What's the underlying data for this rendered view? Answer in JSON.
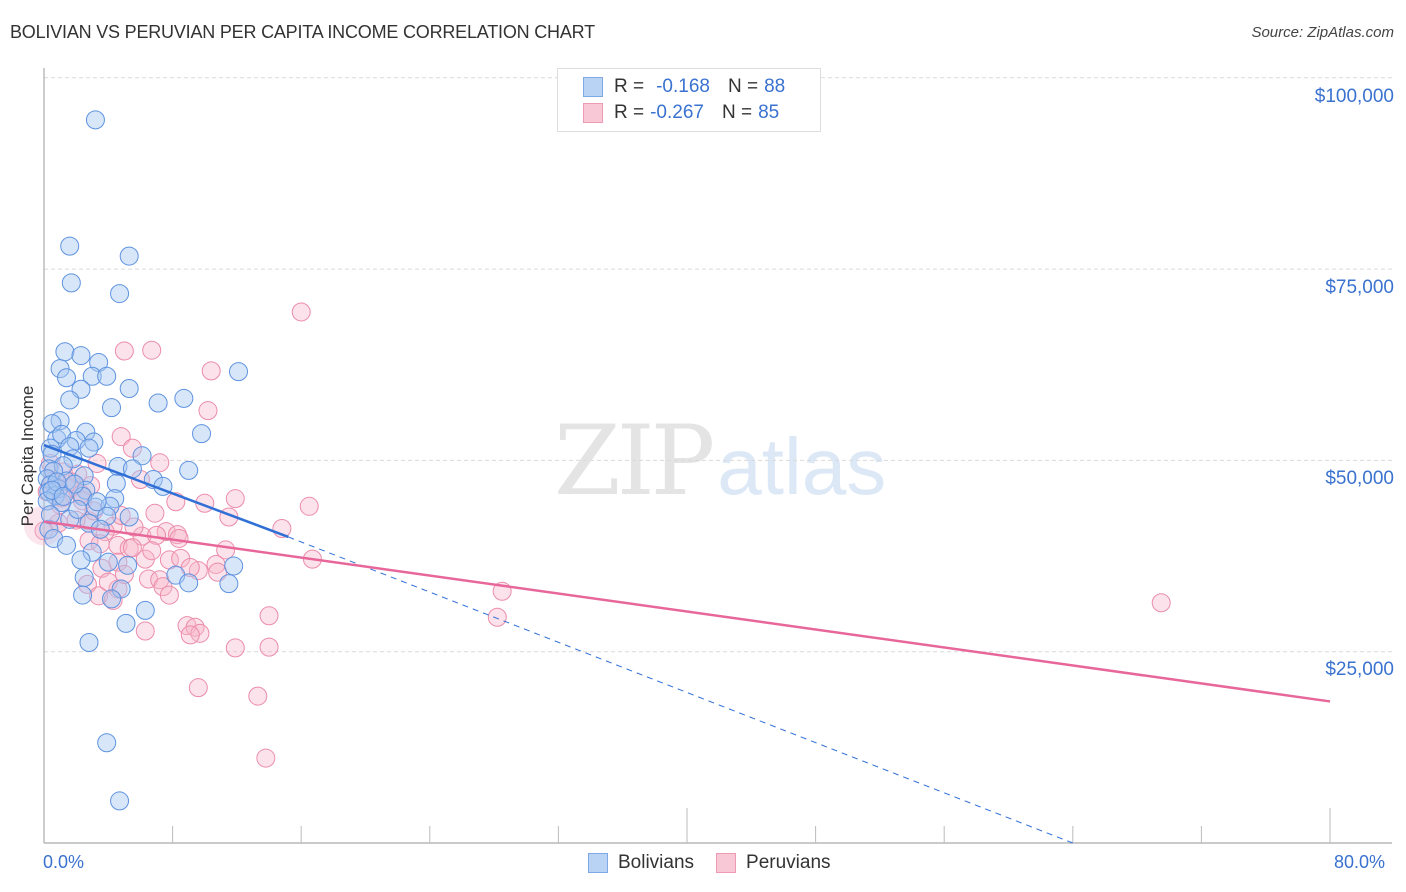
{
  "header": {
    "title": "BOLIVIAN VS PERUVIAN PER CAPITA INCOME CORRELATION CHART",
    "source": "Source: ZipAtlas.com"
  },
  "watermark": {
    "zip": "ZIP",
    "atlas": "atlas"
  },
  "legend": {
    "rows": [
      {
        "r_label": "R =",
        "r_value": "-0.168",
        "n_label": "N =",
        "n_value": "88",
        "color": "#b9d3f5",
        "border": "#7fa8e6"
      },
      {
        "r_label": "R =",
        "r_value": "-0.267",
        "n_label": "N =",
        "n_value": "85",
        "color": "#f9c8d6",
        "border": "#ee9ab4"
      }
    ]
  },
  "bottom_legend": [
    {
      "label": "Bolivians",
      "color": "#b9d3f5",
      "border": "#7fa8e6"
    },
    {
      "label": "Peruvians",
      "color": "#f9c8d6",
      "border": "#ee9ab4"
    }
  ],
  "axes": {
    "ylabel": "Per Capita Income",
    "yticks": [
      "$100,000",
      "$75,000",
      "$50,000",
      "$25,000"
    ],
    "xticks": {
      "min_label": "0.0%",
      "max_label": "80.0%"
    }
  },
  "colors": {
    "blue_line": "#2f6fd6",
    "pink_line": "#e8679a",
    "blue_fill": "rgba(167,199,242,0.45)",
    "blue_stroke": "#5f93e0",
    "pink_fill": "rgba(247,183,203,0.4)",
    "pink_stroke": "#ec8cab",
    "tick_label": "#3a72d0"
  },
  "chart_data": {
    "type": "scatter",
    "title": "BOLIVIAN VS PERUVIAN PER CAPITA INCOME CORRELATION CHART",
    "xlabel": "",
    "ylabel": "Per Capita Income",
    "xlim": [
      0,
      80
    ],
    "ylim": [
      0,
      102000
    ],
    "x_unit": "%",
    "grid": true,
    "legend_position": "top-center and bottom-center",
    "series": [
      {
        "name": "Bolivians",
        "R": -0.168,
        "N": 88,
        "trend": {
          "x0": 0,
          "y0": 52000,
          "x1": 15.2,
          "y1": 40000,
          "dashed_extension_to": {
            "x": 64,
            "y": 0
          }
        },
        "points": [
          [
            3.2,
            94500
          ],
          [
            1.6,
            78000
          ],
          [
            5.3,
            76700
          ],
          [
            1.7,
            73200
          ],
          [
            4.7,
            71800
          ],
          [
            1.3,
            64200
          ],
          [
            2.3,
            63700
          ],
          [
            3.4,
            62800
          ],
          [
            12.1,
            61600
          ],
          [
            1.0,
            62000
          ],
          [
            3.0,
            61000
          ],
          [
            3.9,
            61000
          ],
          [
            1.4,
            60800
          ],
          [
            5.3,
            59400
          ],
          [
            2.3,
            59300
          ],
          [
            1.6,
            57900
          ],
          [
            8.7,
            58100
          ],
          [
            7.1,
            57500
          ],
          [
            4.2,
            56900
          ],
          [
            1.0,
            55200
          ],
          [
            0.5,
            54800
          ],
          [
            2.6,
            53700
          ],
          [
            9.8,
            53500
          ],
          [
            0.8,
            52800
          ],
          [
            1.1,
            53400
          ],
          [
            2.0,
            52600
          ],
          [
            3.1,
            52400
          ],
          [
            1.6,
            51800
          ],
          [
            0.4,
            51600
          ],
          [
            2.8,
            51600
          ],
          [
            0.5,
            50800
          ],
          [
            6.1,
            50600
          ],
          [
            1.8,
            50200
          ],
          [
            0.3,
            48900
          ],
          [
            1.2,
            49300
          ],
          [
            0.6,
            48600
          ],
          [
            2.5,
            48000
          ],
          [
            4.6,
            49200
          ],
          [
            5.5,
            48900
          ],
          [
            9.0,
            48700
          ],
          [
            0.2,
            47600
          ],
          [
            1.4,
            47300
          ],
          [
            0.4,
            46800
          ],
          [
            0.9,
            46300
          ],
          [
            6.8,
            47500
          ],
          [
            4.5,
            47000
          ],
          [
            2.6,
            46100
          ],
          [
            7.4,
            46600
          ],
          [
            0.3,
            45900
          ],
          [
            0.7,
            45400
          ],
          [
            2.4,
            45300
          ],
          [
            4.4,
            45000
          ],
          [
            0.2,
            44700
          ],
          [
            1.1,
            44500
          ],
          [
            3.2,
            43900
          ],
          [
            4.1,
            44000
          ],
          [
            3.9,
            42700
          ],
          [
            5.3,
            42600
          ],
          [
            1.6,
            42300
          ],
          [
            2.8,
            41800
          ],
          [
            0.3,
            41000
          ],
          [
            3.5,
            41000
          ],
          [
            0.6,
            39800
          ],
          [
            1.4,
            38900
          ],
          [
            3.0,
            38000
          ],
          [
            2.3,
            37000
          ],
          [
            4.0,
            36700
          ],
          [
            5.2,
            36300
          ],
          [
            11.8,
            36200
          ],
          [
            8.2,
            35000
          ],
          [
            2.5,
            34700
          ],
          [
            9.0,
            34000
          ],
          [
            11.5,
            33900
          ],
          [
            4.8,
            33200
          ],
          [
            2.4,
            32400
          ],
          [
            4.2,
            31900
          ],
          [
            6.3,
            30400
          ],
          [
            5.1,
            28700
          ],
          [
            2.8,
            26200
          ],
          [
            3.9,
            13100
          ],
          [
            4.7,
            5500
          ],
          [
            0.8,
            47200
          ],
          [
            1.9,
            46900
          ],
          [
            0.5,
            46100
          ],
          [
            1.2,
            45300
          ],
          [
            3.3,
            44600
          ],
          [
            2.1,
            43600
          ],
          [
            0.4,
            42900
          ]
        ]
      },
      {
        "name": "Peruvians",
        "R": -0.267,
        "N": 85,
        "trend": {
          "x0": 0,
          "y0": 42000,
          "x1": 80,
          "y1": 18500
        },
        "points": [
          [
            16.0,
            69400
          ],
          [
            5.0,
            64300
          ],
          [
            6.7,
            64400
          ],
          [
            10.4,
            61700
          ],
          [
            10.2,
            56500
          ],
          [
            4.8,
            53100
          ],
          [
            5.5,
            51600
          ],
          [
            0.4,
            49600
          ],
          [
            7.2,
            49700
          ],
          [
            3.3,
            49600
          ],
          [
            1.2,
            48500
          ],
          [
            2.1,
            48200
          ],
          [
            0.5,
            47200
          ],
          [
            6.0,
            47500
          ],
          [
            1.6,
            46400
          ],
          [
            2.9,
            46700
          ],
          [
            0.2,
            45900
          ],
          [
            11.9,
            45000
          ],
          [
            1.1,
            45100
          ],
          [
            2.4,
            44700
          ],
          [
            8.2,
            44600
          ],
          [
            10.0,
            44400
          ],
          [
            16.5,
            44000
          ],
          [
            6.9,
            43100
          ],
          [
            11.5,
            42600
          ],
          [
            2.8,
            42100
          ],
          [
            0.9,
            41800
          ],
          [
            4.3,
            41400
          ],
          [
            14.8,
            41100
          ],
          [
            3.8,
            40700
          ],
          [
            7.6,
            40700
          ],
          [
            6.1,
            40100
          ],
          [
            8.3,
            40300
          ],
          [
            8.4,
            39800
          ],
          [
            2.8,
            39500
          ],
          [
            4.6,
            38900
          ],
          [
            0.0,
            40800
          ],
          [
            5.3,
            38500
          ],
          [
            5.5,
            38600
          ],
          [
            11.3,
            38300
          ],
          [
            16.7,
            37100
          ],
          [
            7.8,
            37000
          ],
          [
            6.3,
            37100
          ],
          [
            8.5,
            37200
          ],
          [
            4.6,
            36700
          ],
          [
            10.7,
            36400
          ],
          [
            3.6,
            35900
          ],
          [
            9.6,
            35600
          ],
          [
            10.8,
            35400
          ],
          [
            6.5,
            34500
          ],
          [
            7.2,
            34400
          ],
          [
            2.7,
            33800
          ],
          [
            4.6,
            33200
          ],
          [
            7.4,
            33500
          ],
          [
            28.5,
            32900
          ],
          [
            7.8,
            32400
          ],
          [
            3.4,
            32300
          ],
          [
            69.5,
            31400
          ],
          [
            4.3,
            31700
          ],
          [
            14.0,
            29700
          ],
          [
            28.2,
            29500
          ],
          [
            8.9,
            28400
          ],
          [
            9.4,
            28200
          ],
          [
            6.3,
            27700
          ],
          [
            9.7,
            27400
          ],
          [
            9.1,
            27200
          ],
          [
            11.9,
            25500
          ],
          [
            14.0,
            25600
          ],
          [
            9.6,
            20300
          ],
          [
            13.3,
            19200
          ],
          [
            13.8,
            11100
          ],
          [
            1.7,
            47200
          ],
          [
            0.7,
            46500
          ],
          [
            2.3,
            45600
          ],
          [
            1.0,
            44200
          ],
          [
            3.1,
            43400
          ],
          [
            4.8,
            42800
          ],
          [
            2.0,
            42200
          ],
          [
            5.6,
            41300
          ],
          [
            7.0,
            40200
          ],
          [
            3.5,
            39100
          ],
          [
            6.7,
            38200
          ],
          [
            9.1,
            36000
          ],
          [
            5.0,
            35100
          ],
          [
            4.0,
            34100
          ]
        ]
      }
    ]
  }
}
